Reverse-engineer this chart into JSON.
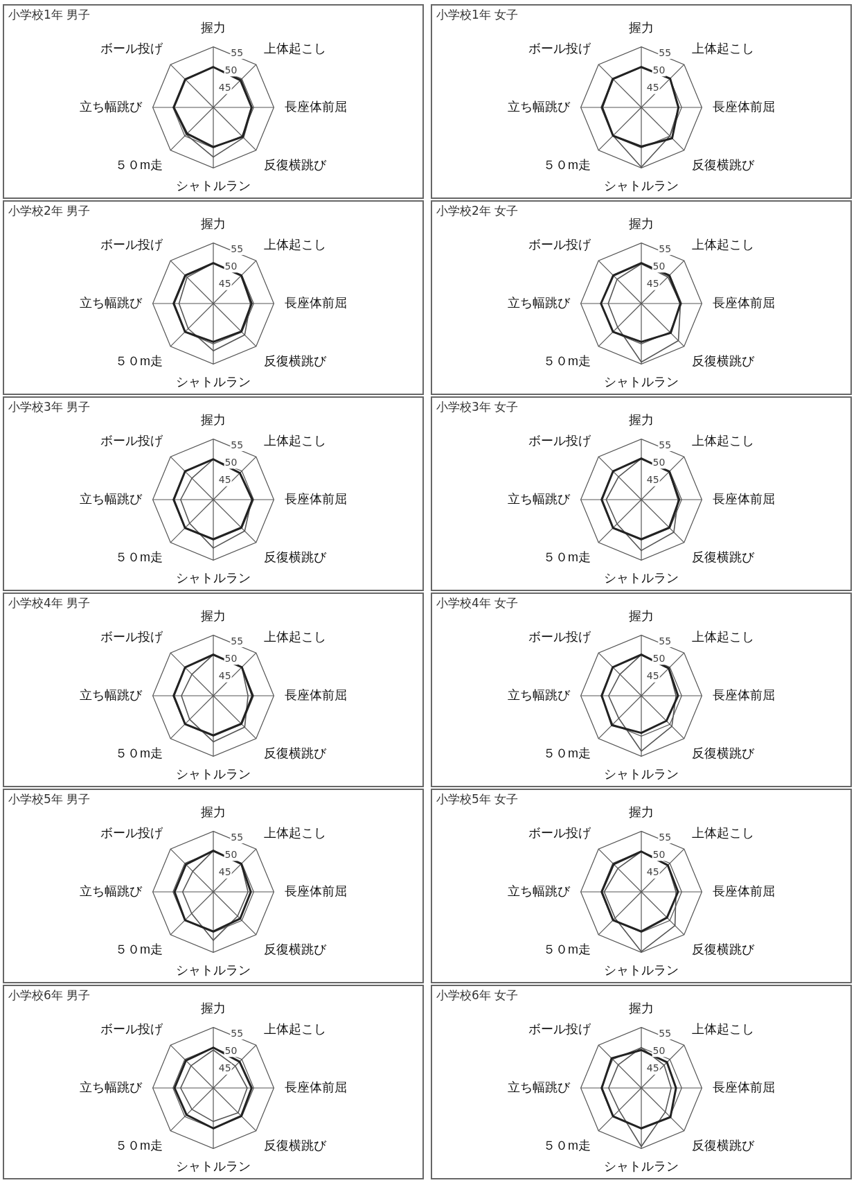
{
  "chart_data": [
    {
      "type": "radar",
      "title": "小学校1年 男子",
      "categories": [
        "握力",
        "上体起こし",
        "長座体前屈",
        "反復横跳び",
        "シャトルラン",
        "５０m走",
        "立ち幅跳び",
        "ボール投げ"
      ],
      "ylim": [
        40,
        55
      ],
      "yticks": [
        45,
        50,
        55
      ],
      "grid": true,
      "legend": false,
      "marker": "none",
      "series": [
        {
          "color": "#222222",
          "values": [
            50,
            49.5,
            49.5,
            50.3,
            49.8,
            49.2,
            49.8,
            49.8
          ]
        },
        {
          "color": "#555555",
          "values": [
            50,
            49.8,
            49.6,
            50.6,
            52.3,
            49.5,
            49.8,
            49.8
          ]
        }
      ]
    },
    {
      "type": "radar",
      "title": "小学校1年 女子",
      "categories": [
        "握力",
        "上体起こし",
        "長座体前屈",
        "反復横跳び",
        "シャトルラン",
        "５０m走",
        "立ち幅跳び",
        "ボール投げ"
      ],
      "ylim": [
        40,
        55
      ],
      "yticks": [
        45,
        50,
        55
      ],
      "grid": true,
      "legend": false,
      "marker": "none",
      "series": [
        {
          "color": "#222222",
          "values": [
            50,
            50.1,
            49.2,
            50.8,
            49.7,
            49.9,
            49.7,
            50
          ]
        },
        {
          "color": "#555555",
          "values": [
            50,
            50,
            49.3,
            50,
            54.8,
            49.9,
            49.7,
            49.8
          ]
        }
      ]
    },
    {
      "type": "radar",
      "title": "小学校2年 男子",
      "categories": [
        "握力",
        "上体起こし",
        "長座体前屈",
        "反復横跳び",
        "シャトルラン",
        "５０m走",
        "立ち幅跳び",
        "ボール投げ"
      ],
      "ylim": [
        40,
        55
      ],
      "yticks": [
        45,
        50,
        55
      ],
      "grid": true,
      "legend": false,
      "marker": "none",
      "series": [
        {
          "color": "#222222",
          "values": [
            50,
            49.8,
            49.5,
            49.8,
            49.5,
            49.9,
            49.8,
            49.8
          ]
        },
        {
          "color": "#555555",
          "values": [
            50,
            49.8,
            49.2,
            51,
            51.7,
            48.8,
            48.5,
            49.2
          ]
        }
      ]
    },
    {
      "type": "radar",
      "title": "小学校2年 女子",
      "categories": [
        "握力",
        "上体起こし",
        "長座体前屈",
        "反復横跳び",
        "シャトルラン",
        "５０m走",
        "立ち幅跳び",
        "ボール投げ"
      ],
      "ylim": [
        40,
        55
      ],
      "yticks": [
        45,
        50,
        55
      ],
      "grid": true,
      "legend": false,
      "marker": "none",
      "series": [
        {
          "color": "#222222",
          "values": [
            50,
            49.8,
            49.7,
            50.3,
            49.5,
            49.9,
            50,
            49.8
          ]
        },
        {
          "color": "#555555",
          "values": [
            49.8,
            49.3,
            49.7,
            53,
            54.5,
            48.3,
            48.2,
            48.5
          ]
        }
      ]
    },
    {
      "type": "radar",
      "title": "小学校3年 男子",
      "categories": [
        "握力",
        "上体起こし",
        "長座体前屈",
        "反復横跳び",
        "シャトルラン",
        "５０m走",
        "立ち幅跳び",
        "ボール投げ"
      ],
      "ylim": [
        40,
        55
      ],
      "yticks": [
        45,
        50,
        55
      ],
      "grid": true,
      "legend": false,
      "marker": "none",
      "series": [
        {
          "color": "#222222",
          "values": [
            50,
            49.3,
            49.7,
            49.8,
            49.8,
            49.9,
            49.8,
            49.9
          ]
        },
        {
          "color": "#555555",
          "values": [
            50,
            49.3,
            49.5,
            51,
            52,
            48.3,
            48.1,
            47.5
          ]
        }
      ]
    },
    {
      "type": "radar",
      "title": "小学校3年 女子",
      "categories": [
        "握力",
        "上体起こし",
        "長座体前屈",
        "反復横跳び",
        "シャトルラン",
        "５０m走",
        "立ち幅跳び",
        "ボール投げ"
      ],
      "ylim": [
        40,
        55
      ],
      "yticks": [
        45,
        50,
        55
      ],
      "grid": true,
      "legend": false,
      "marker": "none",
      "series": [
        {
          "color": "#222222",
          "values": [
            50.2,
            49.8,
            49.4,
            49.8,
            49.8,
            49.9,
            49.8,
            49.9
          ]
        },
        {
          "color": "#555555",
          "values": [
            50.2,
            49.8,
            49.1,
            51.4,
            52.6,
            48.5,
            48.7,
            48
          ]
        }
      ]
    },
    {
      "type": "radar",
      "title": "小学校4年 男子",
      "categories": [
        "握力",
        "上体起こし",
        "長座体前屈",
        "反復横跳び",
        "シャトルラン",
        "５０m走",
        "立ち幅跳び",
        "ボール投げ"
      ],
      "ylim": [
        40,
        55
      ],
      "yticks": [
        45,
        50,
        55
      ],
      "grid": true,
      "legend": false,
      "marker": "none",
      "series": [
        {
          "color": "#222222",
          "values": [
            50.2,
            50,
            49.7,
            49.8,
            49.8,
            49.9,
            49.8,
            49.9
          ]
        },
        {
          "color": "#555555",
          "values": [
            50.2,
            50,
            48.6,
            51,
            51.4,
            48.3,
            47.9,
            47.5
          ]
        }
      ]
    },
    {
      "type": "radar",
      "title": "小学校4年 女子",
      "categories": [
        "握力",
        "上体起こし",
        "長座体前屈",
        "反復横跳び",
        "シャトルラン",
        "５０m走",
        "立ち幅跳び",
        "ボール投げ"
      ],
      "ylim": [
        40,
        55
      ],
      "yticks": [
        45,
        50,
        55
      ],
      "grid": true,
      "legend": false,
      "marker": "none",
      "series": [
        {
          "color": "#222222",
          "values": [
            50.2,
            49.6,
            49.1,
            48.8,
            49.2,
            50.3,
            49.8,
            50
          ]
        },
        {
          "color": "#555555",
          "values": [
            50.2,
            49.6,
            48.6,
            50.7,
            53.7,
            47.9,
            48.1,
            47.5
          ]
        }
      ]
    },
    {
      "type": "radar",
      "title": "小学校5年 男子",
      "categories": [
        "握力",
        "上体起こし",
        "長座体前屈",
        "反復横跳び",
        "シャトルラン",
        "５０m走",
        "立ち幅跳び",
        "ボール投げ"
      ],
      "ylim": [
        40,
        55
      ],
      "yticks": [
        45,
        50,
        55
      ],
      "grid": true,
      "legend": false,
      "marker": "none",
      "series": [
        {
          "color": "#222222",
          "values": [
            50.2,
            49.8,
            49.3,
            49.4,
            49.8,
            49.9,
            49.6,
            49.6
          ]
        },
        {
          "color": "#555555",
          "values": [
            50.2,
            49.8,
            48.6,
            48.5,
            52,
            47.6,
            47.6,
            47.2
          ]
        }
      ]
    },
    {
      "type": "radar",
      "title": "小学校5年 女子",
      "categories": [
        "握力",
        "上体起こし",
        "長座体前屈",
        "反復横跳び",
        "シャトルラン",
        "５０m走",
        "立ち幅跳び",
        "ボール投げ"
      ],
      "ylim": [
        40,
        55
      ],
      "yticks": [
        45,
        50,
        55
      ],
      "grid": true,
      "legend": false,
      "marker": "none",
      "series": [
        {
          "color": "#222222",
          "values": [
            50,
            49.3,
            49.1,
            49,
            49.8,
            49.9,
            49.8,
            49.7
          ]
        },
        {
          "color": "#555555",
          "values": [
            50,
            49.3,
            48.6,
            51.8,
            54.8,
            49.2,
            49.2,
            48.2
          ]
        }
      ]
    },
    {
      "type": "radar",
      "title": "小学校6年 男子",
      "categories": [
        "握力",
        "上体起こし",
        "長座体前屈",
        "反復横跳び",
        "シャトルラン",
        "５０m走",
        "立ち幅跳び",
        "ボール投げ"
      ],
      "ylim": [
        40,
        55
      ],
      "yticks": [
        45,
        50,
        55
      ],
      "grid": true,
      "legend": false,
      "marker": "none",
      "series": [
        {
          "color": "#222222",
          "values": [
            50,
            49.2,
            49.5,
            49.8,
            50,
            49.4,
            49.6,
            49.6
          ]
        },
        {
          "color": "#555555",
          "values": [
            49.4,
            47.7,
            48.4,
            48.7,
            48.3,
            47.5,
            48.1,
            47.8
          ]
        }
      ]
    },
    {
      "type": "radar",
      "title": "小学校6年 女子",
      "categories": [
        "握力",
        "上体起こし",
        "長座体前屈",
        "反復横跳び",
        "シャトルラン",
        "５０m走",
        "立ち幅跳び",
        "ボール投げ"
      ],
      "ylim": [
        40,
        55
      ],
      "yticks": [
        45,
        50,
        55
      ],
      "grid": true,
      "legend": false,
      "marker": "none",
      "series": [
        {
          "color": "#222222",
          "values": [
            49.4,
            49,
            48.6,
            50.2,
            50,
            49.9,
            49.8,
            50.4
          ]
        },
        {
          "color": "#555555",
          "values": [
            50,
            48,
            47.4,
            48.4,
            54.5,
            47.8,
            48.1,
            48.1
          ]
        }
      ]
    }
  ]
}
